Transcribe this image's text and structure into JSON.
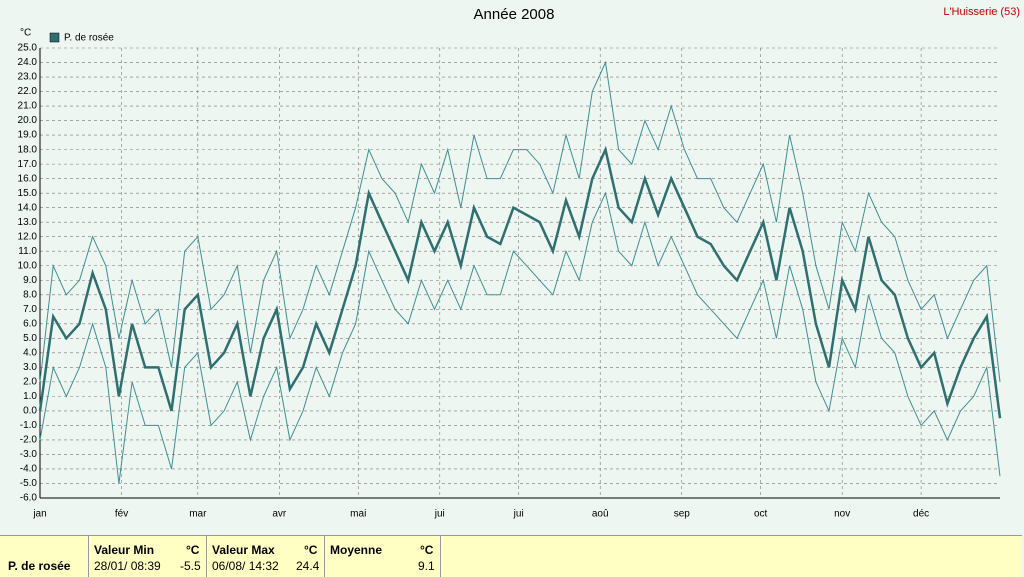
{
  "chart_data": {
    "type": "line",
    "title": "Année 2008",
    "station": "L'Huisserie (53)",
    "ylabel": "°C",
    "x": [
      1,
      6,
      11,
      16,
      21,
      26,
      31,
      36,
      41,
      46,
      51,
      56,
      61,
      66,
      71,
      76,
      81,
      86,
      91,
      96,
      101,
      106,
      111,
      116,
      121,
      126,
      131,
      136,
      141,
      146,
      151,
      156,
      161,
      166,
      171,
      176,
      181,
      186,
      191,
      196,
      201,
      206,
      211,
      216,
      221,
      226,
      231,
      236,
      241,
      246,
      251,
      256,
      261,
      266,
      271,
      276,
      281,
      286,
      291,
      296,
      301,
      306,
      311,
      316,
      321,
      326,
      331,
      336,
      341,
      346,
      351,
      356,
      361,
      366
    ],
    "series": [
      {
        "name": "P. de rosée",
        "color": "#2f6f6f",
        "values": [
          0,
          6.5,
          5,
          6,
          9.5,
          7,
          1,
          6,
          3,
          3,
          0,
          7,
          8,
          3,
          4,
          6,
          1,
          5,
          7,
          1.5,
          3,
          6,
          4,
          7,
          10,
          15,
          13,
          11,
          9,
          13,
          11,
          13,
          10,
          14,
          12,
          11.5,
          14,
          13.5,
          13,
          11,
          14.5,
          12,
          16,
          18,
          14,
          13,
          16,
          13.5,
          16,
          14,
          12,
          11.5,
          10,
          9,
          11,
          13,
          9,
          14,
          11,
          6,
          3,
          9,
          7,
          12,
          9,
          8,
          5,
          3,
          4,
          0.5,
          3,
          5,
          6.5,
          -0.5
        ]
      },
      {
        "color": "#3f8f8f",
        "values": [
          -2,
          3,
          1,
          3,
          6,
          3,
          -5,
          2,
          -1,
          -1,
          -4,
          3,
          4,
          -1,
          0,
          2,
          -2,
          1,
          3,
          -2,
          0,
          3,
          1,
          4,
          6,
          11,
          9,
          7,
          6,
          9,
          7,
          9,
          7,
          10,
          8,
          8,
          11,
          10,
          9,
          8,
          11,
          9,
          13,
          15,
          11,
          10,
          13,
          10,
          12,
          10,
          8,
          7,
          6,
          5,
          7,
          9,
          5,
          10,
          7,
          2,
          0,
          5,
          3,
          8,
          5,
          4,
          1,
          -1,
          0,
          -2,
          0,
          1,
          3,
          -4.5
        ]
      },
      {
        "color": "#3f8f8f",
        "values": [
          2,
          10,
          8,
          9,
          12,
          10,
          5,
          9,
          6,
          7,
          3,
          11,
          12,
          7,
          8,
          10,
          4,
          9,
          11,
          5,
          7,
          10,
          8,
          11,
          14,
          18,
          16,
          15,
          13,
          17,
          15,
          18,
          14,
          19,
          16,
          16,
          18,
          18,
          17,
          15,
          19,
          16,
          22,
          24,
          18,
          17,
          20,
          18,
          21,
          18,
          16,
          16,
          14,
          13,
          15,
          17,
          13,
          19,
          15,
          10,
          7,
          13,
          11,
          15,
          13,
          12,
          9,
          7,
          8,
          5,
          7,
          9,
          10,
          2
        ]
      }
    ],
    "xlim": [
      1,
      366
    ],
    "xticks": [
      {
        "value": 1,
        "label": "jan"
      },
      {
        "value": 32,
        "label": "fév"
      },
      {
        "value": 61,
        "label": "mar"
      },
      {
        "value": 92,
        "label": "avr"
      },
      {
        "value": 122,
        "label": "mai"
      },
      {
        "value": 153,
        "label": "jui"
      },
      {
        "value": 183,
        "label": "jui"
      },
      {
        "value": 214,
        "label": "aoû"
      },
      {
        "value": 245,
        "label": "sep"
      },
      {
        "value": 275,
        "label": "oct"
      },
      {
        "value": 306,
        "label": "nov"
      },
      {
        "value": 336,
        "label": "déc"
      }
    ],
    "ylim": [
      -6,
      25
    ],
    "yticks": [
      {
        "value": -6,
        "label": "-6.0"
      },
      {
        "value": -5,
        "label": "-5.0"
      },
      {
        "value": -4,
        "label": "-4.0"
      },
      {
        "value": -3,
        "label": "-3.0"
      },
      {
        "value": -2,
        "label": "-2.0"
      },
      {
        "value": -1,
        "label": "-1.0"
      },
      {
        "value": 0,
        "label": "0.0"
      },
      {
        "value": 1,
        "label": "1.0"
      },
      {
        "value": 2,
        "label": "2.0"
      },
      {
        "value": 3,
        "label": "3.0"
      },
      {
        "value": 4,
        "label": "4.0"
      },
      {
        "value": 5,
        "label": "5.0"
      },
      {
        "value": 6,
        "label": "6.0"
      },
      {
        "value": 7,
        "label": "7.0"
      },
      {
        "value": 8,
        "label": "8.0"
      },
      {
        "value": 9,
        "label": "9.0"
      },
      {
        "value": 10,
        "label": "10.0"
      },
      {
        "value": 11,
        "label": "11.0"
      },
      {
        "value": 12,
        "label": "12.0"
      },
      {
        "value": 13,
        "label": "13.0"
      },
      {
        "value": 14,
        "label": "14.0"
      },
      {
        "value": 15,
        "label": "15.0"
      },
      {
        "value": 16,
        "label": "16.0"
      },
      {
        "value": 17,
        "label": "17.0"
      },
      {
        "value": 18,
        "label": "18.0"
      },
      {
        "value": 19,
        "label": "19.0"
      },
      {
        "value": 20,
        "label": "20.0"
      },
      {
        "value": 21,
        "label": "21.0"
      },
      {
        "value": 22,
        "label": "22.0"
      },
      {
        "value": 23,
        "label": "23.0"
      },
      {
        "value": 24,
        "label": "24.0"
      },
      {
        "value": 25,
        "label": "25.0"
      }
    ],
    "grid": true
  },
  "summary": {
    "name": "P. de rosée",
    "min": {
      "title": "Valeur Min",
      "unit": "°C",
      "date": "28/01/ 08:39",
      "value": "-5.5"
    },
    "max": {
      "title": "Valeur Max",
      "unit": "°C",
      "date": "06/08/ 14:32",
      "value": "24.4"
    },
    "mean": {
      "title": "Moyenne",
      "unit": "°C",
      "value": "9.1"
    }
  }
}
